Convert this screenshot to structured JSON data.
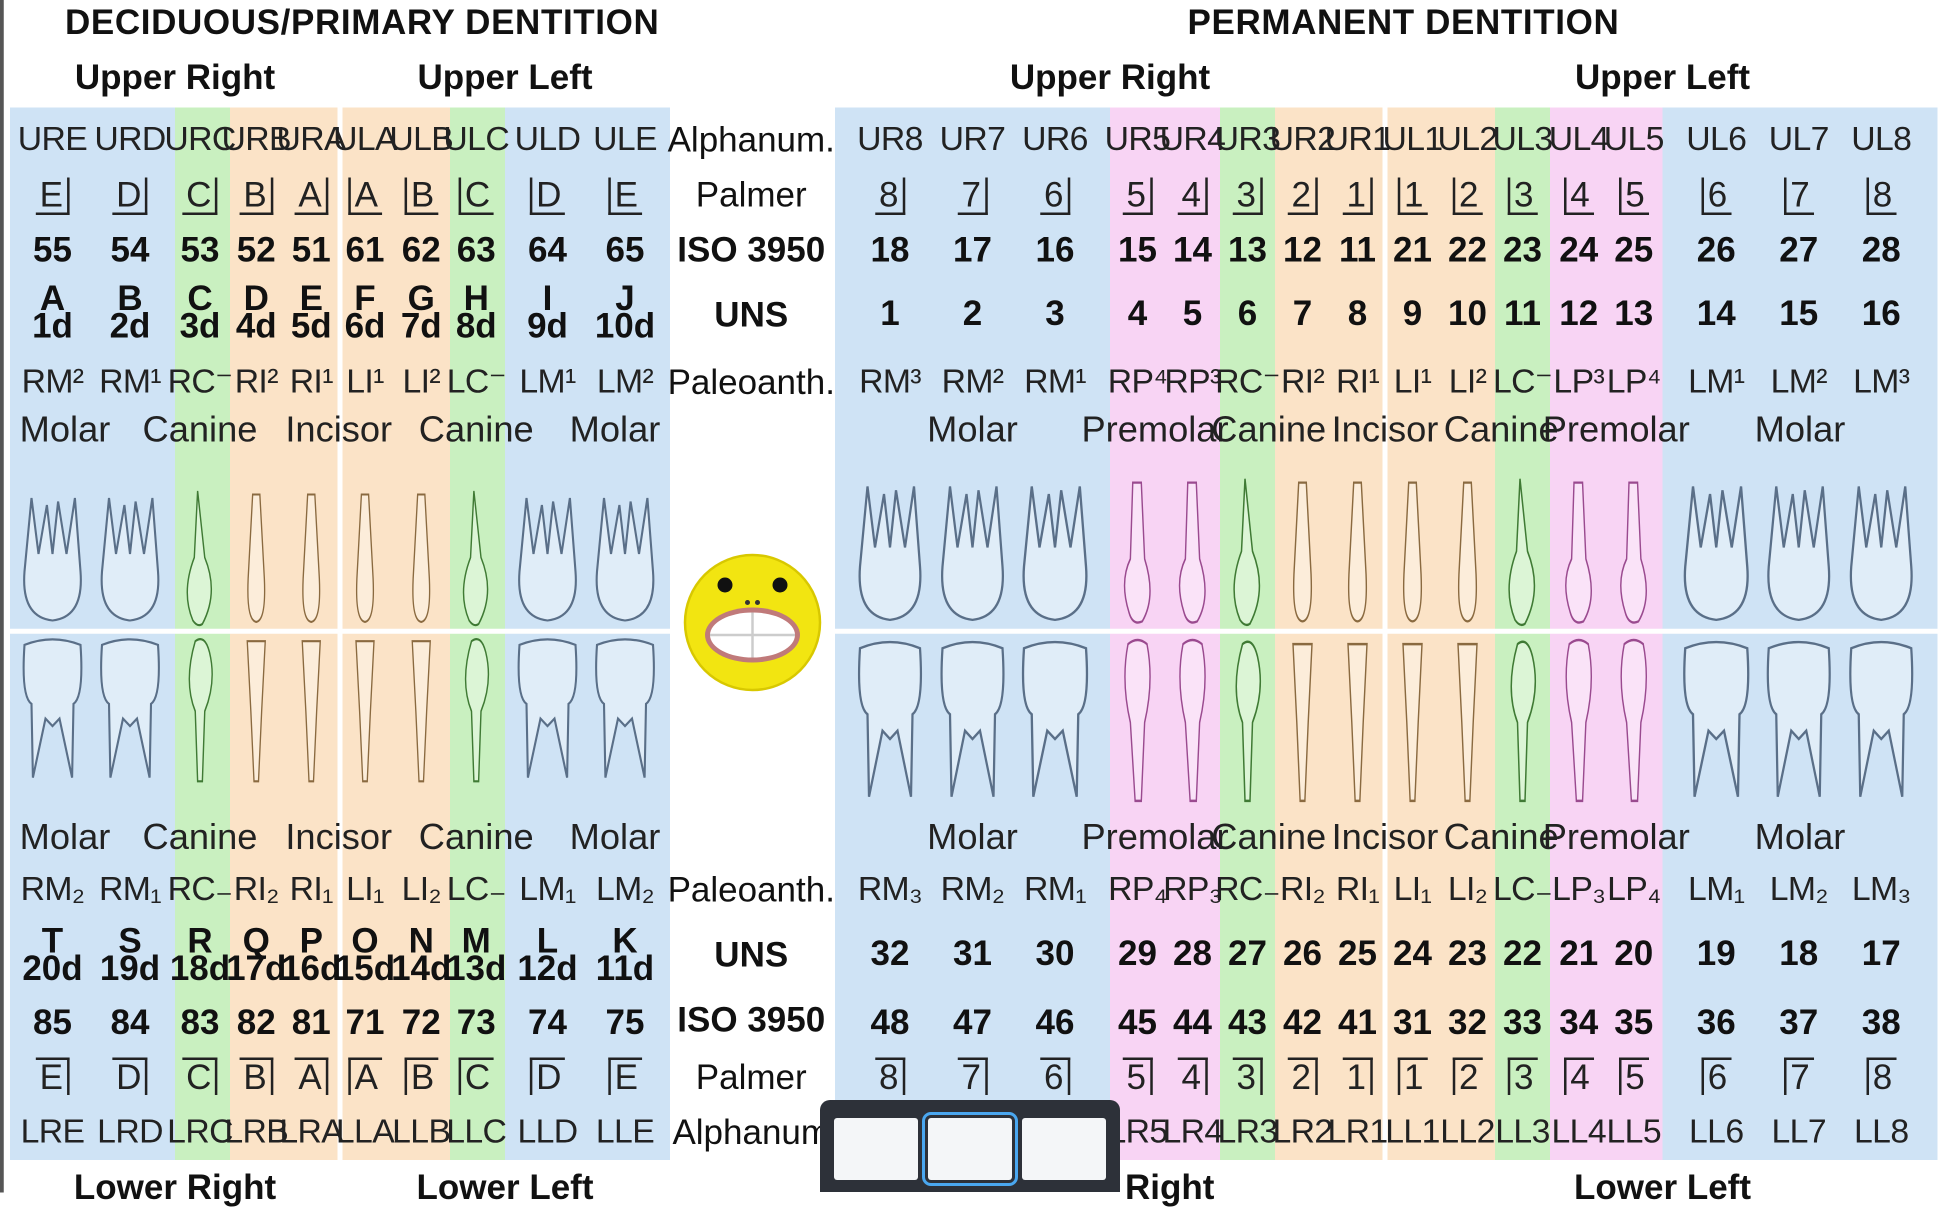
{
  "headers": {
    "primary_title": "DECIDUOUS/PRIMARY DENTITION",
    "permanent_title": "PERMANENT DENTITION",
    "upper_right": "Upper Right",
    "upper_left": "Upper Left",
    "lower_right": "Lower Right",
    "lower_left": "Lower Left",
    "lower_right_partial": "Right"
  },
  "row_labels": {
    "alphanum": "Alphanum.",
    "palmer": "Palmer",
    "iso": "ISO 3950",
    "uns": "UNS",
    "paleo": "Paleoanth.",
    "alphanum_lower": "Alphanum"
  },
  "colors": {
    "molar": "#cfe3f5",
    "canine": "#c9f0c0",
    "incisor": "#fbe3c7",
    "premolar": "#f8d4f4",
    "tooth_molar": "#5a6f88",
    "tooth_canine": "#3f7a34",
    "tooth_incisor": "#8a6a40",
    "tooth_premolar": "#9a4a8f",
    "emoji": "#f2e511"
  },
  "primary": {
    "upper": {
      "alphanum": [
        "URE",
        "URD",
        "URC",
        "URB",
        "URA",
        "ULA",
        "ULB",
        "ULC",
        "ULD",
        "ULE"
      ],
      "palmer": [
        "E",
        "D",
        "C",
        "B",
        "A",
        "A",
        "B",
        "C",
        "D",
        "E"
      ],
      "iso": [
        "55",
        "54",
        "53",
        "52",
        "51",
        "61",
        "62",
        "63",
        "64",
        "65"
      ],
      "uns_letter": [
        "A",
        "B",
        "C",
        "D",
        "E",
        "F",
        "G",
        "H",
        "I",
        "J"
      ],
      "uns_num": [
        "1d",
        "2d",
        "3d",
        "4d",
        "5d",
        "6d",
        "7d",
        "8d",
        "9d",
        "10d"
      ],
      "paleo": [
        "RM²",
        "RM¹",
        "RC⁻",
        "RI²",
        "RI¹",
        "LI¹",
        "LI²",
        "LC⁻",
        "LM¹",
        "LM²"
      ],
      "types": [
        "Molar",
        "Canine",
        "Incisor",
        "Canine",
        "Molar"
      ]
    },
    "lower": {
      "types": [
        "Molar",
        "Canine",
        "Incisor",
        "Canine",
        "Molar"
      ],
      "paleo": [
        "RM₂",
        "RM₁",
        "RC₋",
        "RI₂",
        "RI₁",
        "LI₁",
        "LI₂",
        "LC₋",
        "LM₁",
        "LM₂"
      ],
      "uns_letter": [
        "T",
        "S",
        "R",
        "Q",
        "P",
        "O",
        "N",
        "M",
        "L",
        "K"
      ],
      "uns_num": [
        "20d",
        "19d",
        "18d",
        "17d",
        "16d",
        "15d",
        "14d",
        "13d",
        "12d",
        "11d"
      ],
      "iso": [
        "85",
        "84",
        "83",
        "82",
        "81",
        "71",
        "72",
        "73",
        "74",
        "75"
      ],
      "palmer": [
        "E",
        "D",
        "C",
        "B",
        "A",
        "A",
        "B",
        "C",
        "D",
        "E"
      ],
      "alphanum": [
        "LRE",
        "LRD",
        "LRC",
        "LRB",
        "LRA",
        "LLA",
        "LLB",
        "LLC",
        "LLD",
        "LLE"
      ]
    }
  },
  "permanent": {
    "upper": {
      "alphanum": [
        "UR8",
        "UR7",
        "UR6",
        "UR5",
        "UR4",
        "UR3",
        "UR2",
        "UR1",
        "UL1",
        "UL2",
        "UL3",
        "UL4",
        "UL5",
        "UL6",
        "UL7",
        "UL8"
      ],
      "palmer": [
        "8",
        "7",
        "6",
        "5",
        "4",
        "3",
        "2",
        "1",
        "1",
        "2",
        "3",
        "4",
        "5",
        "6",
        "7",
        "8"
      ],
      "iso": [
        "18",
        "17",
        "16",
        "15",
        "14",
        "13",
        "12",
        "11",
        "21",
        "22",
        "23",
        "24",
        "25",
        "26",
        "27",
        "28"
      ],
      "uns": [
        "1",
        "2",
        "3",
        "4",
        "5",
        "6",
        "7",
        "8",
        "9",
        "10",
        "11",
        "12",
        "13",
        "14",
        "15",
        "16"
      ],
      "paleo": [
        "RM³",
        "RM²",
        "RM¹",
        "RP⁴",
        "RP³",
        "RC⁻",
        "RI²",
        "RI¹",
        "LI¹",
        "LI²",
        "LC⁻",
        "LP³",
        "LP⁴",
        "LM¹",
        "LM²",
        "LM³"
      ],
      "types": [
        "Molar",
        "Premolar",
        "Canine",
        "Incisor",
        "Canine",
        "Premolar",
        "Molar"
      ]
    },
    "lower": {
      "types": [
        "Molar",
        "Premolar",
        "Canine",
        "Incisor",
        "Canine",
        "Premolar",
        "Molar"
      ],
      "paleo": [
        "RM₃",
        "RM₂",
        "RM₁",
        "RP₄",
        "RP₃",
        "RC₋",
        "RI₂",
        "RI₁",
        "LI₁",
        "LI₂",
        "LC₋",
        "LP₃",
        "LP₄",
        "LM₁",
        "LM₂",
        "LM₃"
      ],
      "uns": [
        "32",
        "31",
        "30",
        "29",
        "28",
        "27",
        "26",
        "25",
        "24",
        "23",
        "22",
        "21",
        "20",
        "19",
        "18",
        "17"
      ],
      "iso": [
        "48",
        "47",
        "46",
        "45",
        "44",
        "43",
        "42",
        "41",
        "31",
        "32",
        "33",
        "34",
        "35",
        "36",
        "37",
        "38"
      ],
      "palmer": [
        "8",
        "7",
        "6",
        "5",
        "4",
        "3",
        "2",
        "1",
        "1",
        "2",
        "3",
        "4",
        "5",
        "6",
        "7",
        "8"
      ],
      "alphanum": [
        "LR8",
        "LR7",
        "LR6",
        "LR5",
        "LR4",
        "LR3",
        "LR2",
        "LR1",
        "LL1",
        "LL2",
        "LL3",
        "LL4",
        "LL5",
        "LL6",
        "LL7",
        "LL8"
      ]
    }
  },
  "taskbar": {
    "thumbnails": [
      "window-1",
      "window-2",
      "window-3"
    ],
    "active_index": 1
  }
}
